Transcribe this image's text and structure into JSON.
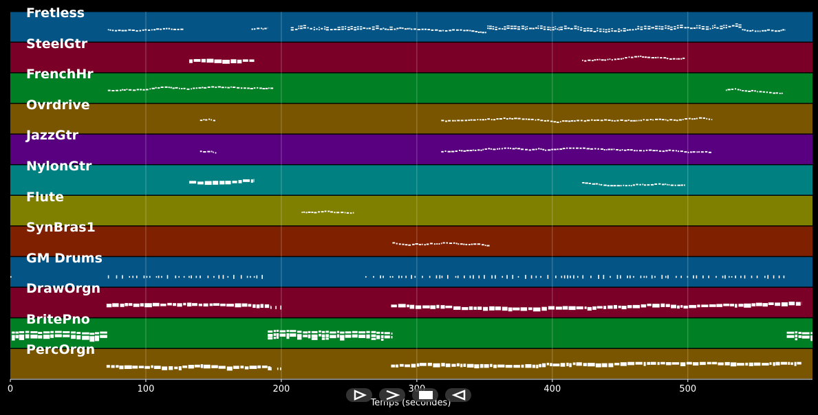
{
  "chart_data": {
    "type": "piano-roll",
    "xlabel": "Temps (secondes)",
    "xlim": [
      0,
      592
    ],
    "xticks": [
      0,
      100,
      200,
      300,
      400,
      500
    ],
    "tracks": [
      {
        "name": "Fretless",
        "color": "#045586",
        "events": [
          [
            72,
            128,
            "s"
          ],
          [
            178,
            190,
            "s"
          ],
          [
            207,
            285,
            "d"
          ],
          [
            285,
            352,
            "s"
          ],
          [
            352,
            540,
            "d"
          ],
          [
            540,
            572,
            "s"
          ]
        ]
      },
      {
        "name": "SteelGtr",
        "color": "#7a0027",
        "events": [
          [
            132,
            180,
            "t"
          ],
          [
            422,
            498,
            "s"
          ]
        ]
      },
      {
        "name": "FrenchHr",
        "color": "#007f24",
        "events": [
          [
            72,
            194,
            "s"
          ],
          [
            528,
            570,
            "s"
          ]
        ]
      },
      {
        "name": "Ovrdrive",
        "color": "#7a5500",
        "events": [
          [
            140,
            152,
            "s"
          ],
          [
            318,
            518,
            "s"
          ]
        ]
      },
      {
        "name": "JazzGtr",
        "color": "#580080",
        "events": [
          [
            140,
            152,
            "s"
          ],
          [
            318,
            518,
            "s"
          ]
        ]
      },
      {
        "name": "NylonGtr",
        "color": "#008080",
        "events": [
          [
            132,
            180,
            "t"
          ],
          [
            422,
            498,
            "s"
          ]
        ]
      },
      {
        "name": "Flute",
        "color": "#7f7f00",
        "events": [
          [
            215,
            254,
            "s"
          ]
        ]
      },
      {
        "name": "SynBras1",
        "color": "#7f2000",
        "events": [
          [
            282,
            354,
            "s"
          ]
        ]
      },
      {
        "name": "GM Drums",
        "color": "#045586",
        "events": [
          [
            0,
            3,
            "v"
          ],
          [
            72,
            190,
            "v"
          ],
          [
            262,
            572,
            "v"
          ]
        ]
      },
      {
        "name": "DrawOrgn",
        "color": "#7a0027",
        "events": [
          [
            71,
            192,
            "t"
          ],
          [
            192,
            202,
            "v"
          ],
          [
            281,
            584,
            "t"
          ]
        ]
      },
      {
        "name": "BritePno",
        "color": "#007f24",
        "events": [
          [
            1,
            72,
            "t"
          ],
          [
            190,
            282,
            "t"
          ],
          [
            573,
            592,
            "t"
          ]
        ]
      },
      {
        "name": "PercOrgn",
        "color": "#7a5500",
        "events": [
          [
            71,
            192,
            "t"
          ],
          [
            192,
            202,
            "v"
          ],
          [
            281,
            584,
            "t"
          ]
        ]
      }
    ]
  },
  "controls": [
    {
      "name": "play-button",
      "icon": "play-icon"
    },
    {
      "name": "fast-forward-button",
      "icon": "fast-forward-icon"
    },
    {
      "name": "stop-button",
      "icon": "stop-icon"
    },
    {
      "name": "rewind-button",
      "icon": "rewind-icon"
    }
  ]
}
